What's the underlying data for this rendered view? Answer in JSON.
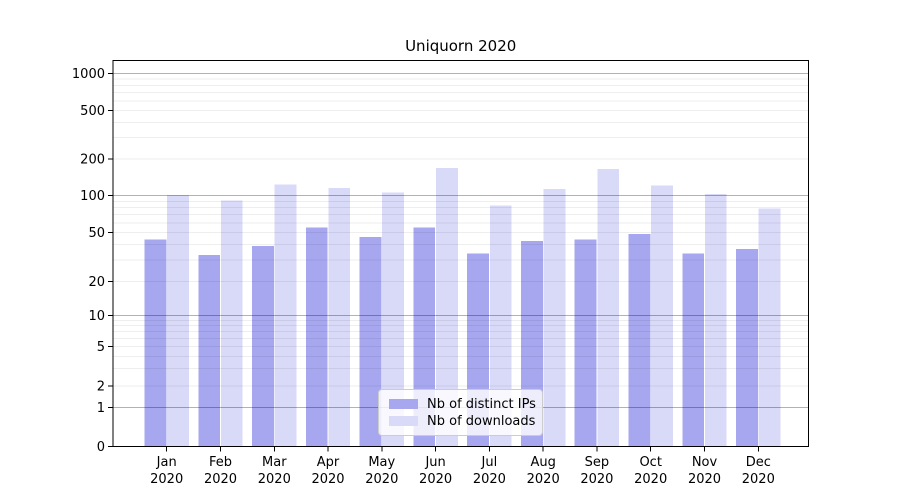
{
  "figure": {
    "title": "Uniquorn 2020"
  },
  "chart_data": {
    "type": "bar",
    "title": "Uniquorn 2020",
    "categories": [
      "Jan 2020",
      "Feb 2020",
      "Mar 2020",
      "Apr 2020",
      "May 2020",
      "Jun 2020",
      "Jul 2020",
      "Aug 2020",
      "Sep 2020",
      "Oct 2020",
      "Nov 2020",
      "Dec 2020"
    ],
    "months": [
      "Jan",
      "Feb",
      "Mar",
      "Apr",
      "May",
      "Jun",
      "Jul",
      "Aug",
      "Sep",
      "Oct",
      "Nov",
      "Dec"
    ],
    "year": "2020",
    "series": [
      {
        "name": "Nb of distinct IPs",
        "color": "#a7a7f0",
        "values": [
          44,
          33,
          39,
          55,
          46,
          55,
          34,
          43,
          44,
          49,
          34,
          37
        ]
      },
      {
        "name": "Nb of downloads",
        "color": "#d9d9f8",
        "values": [
          101,
          91,
          123,
          116,
          106,
          168,
          83,
          113,
          166,
          121,
          103,
          79
        ]
      }
    ],
    "yscale": "symlog",
    "y_ticks": [
      0,
      1,
      2,
      5,
      10,
      20,
      50,
      100,
      200,
      500,
      1000
    ],
    "ylim": [
      0,
      1270
    ],
    "xlabel": "",
    "ylabel": "",
    "grid": true,
    "legend_position": "lower center"
  }
}
